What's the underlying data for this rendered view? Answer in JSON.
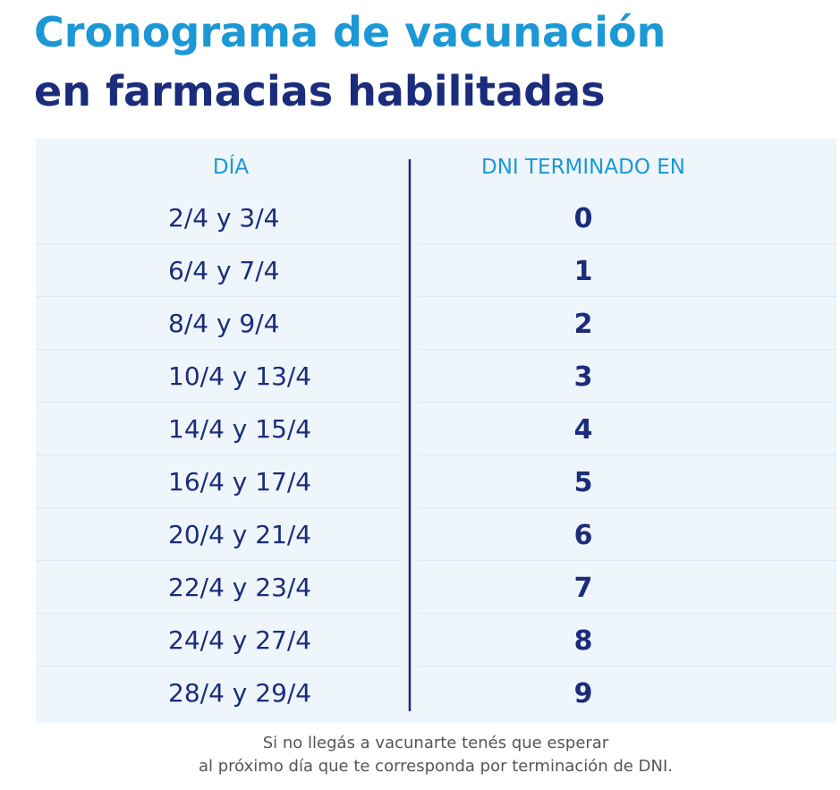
{
  "header": {
    "title": [
      "Cronograma de vacunación",
      "en farmacias habilitadas"
    ]
  },
  "table": {
    "columns": [
      "DÍA",
      "DNI TERMINADO EN"
    ],
    "rows": [
      [
        "2/4 y 3/4",
        0
      ],
      [
        "6/4 y 7/4",
        1
      ],
      [
        "8/4 y 9/4",
        2
      ],
      [
        "10/4 y 13/4",
        3
      ],
      [
        "14/4 y 15/4",
        4
      ],
      [
        "16/4 y 17/4",
        5
      ],
      [
        "20/4 y 21/4",
        6
      ],
      [
        "22/4 y 23/4",
        7
      ],
      [
        "24/4 y 27/4",
        8
      ],
      [
        "28/4 y 29/4",
        9
      ]
    ]
  },
  "footnote": [
    "Si no llegás a vacunarte tenés que esperar",
    "al próximo día que te corresponda por terminación de DNI."
  ]
}
